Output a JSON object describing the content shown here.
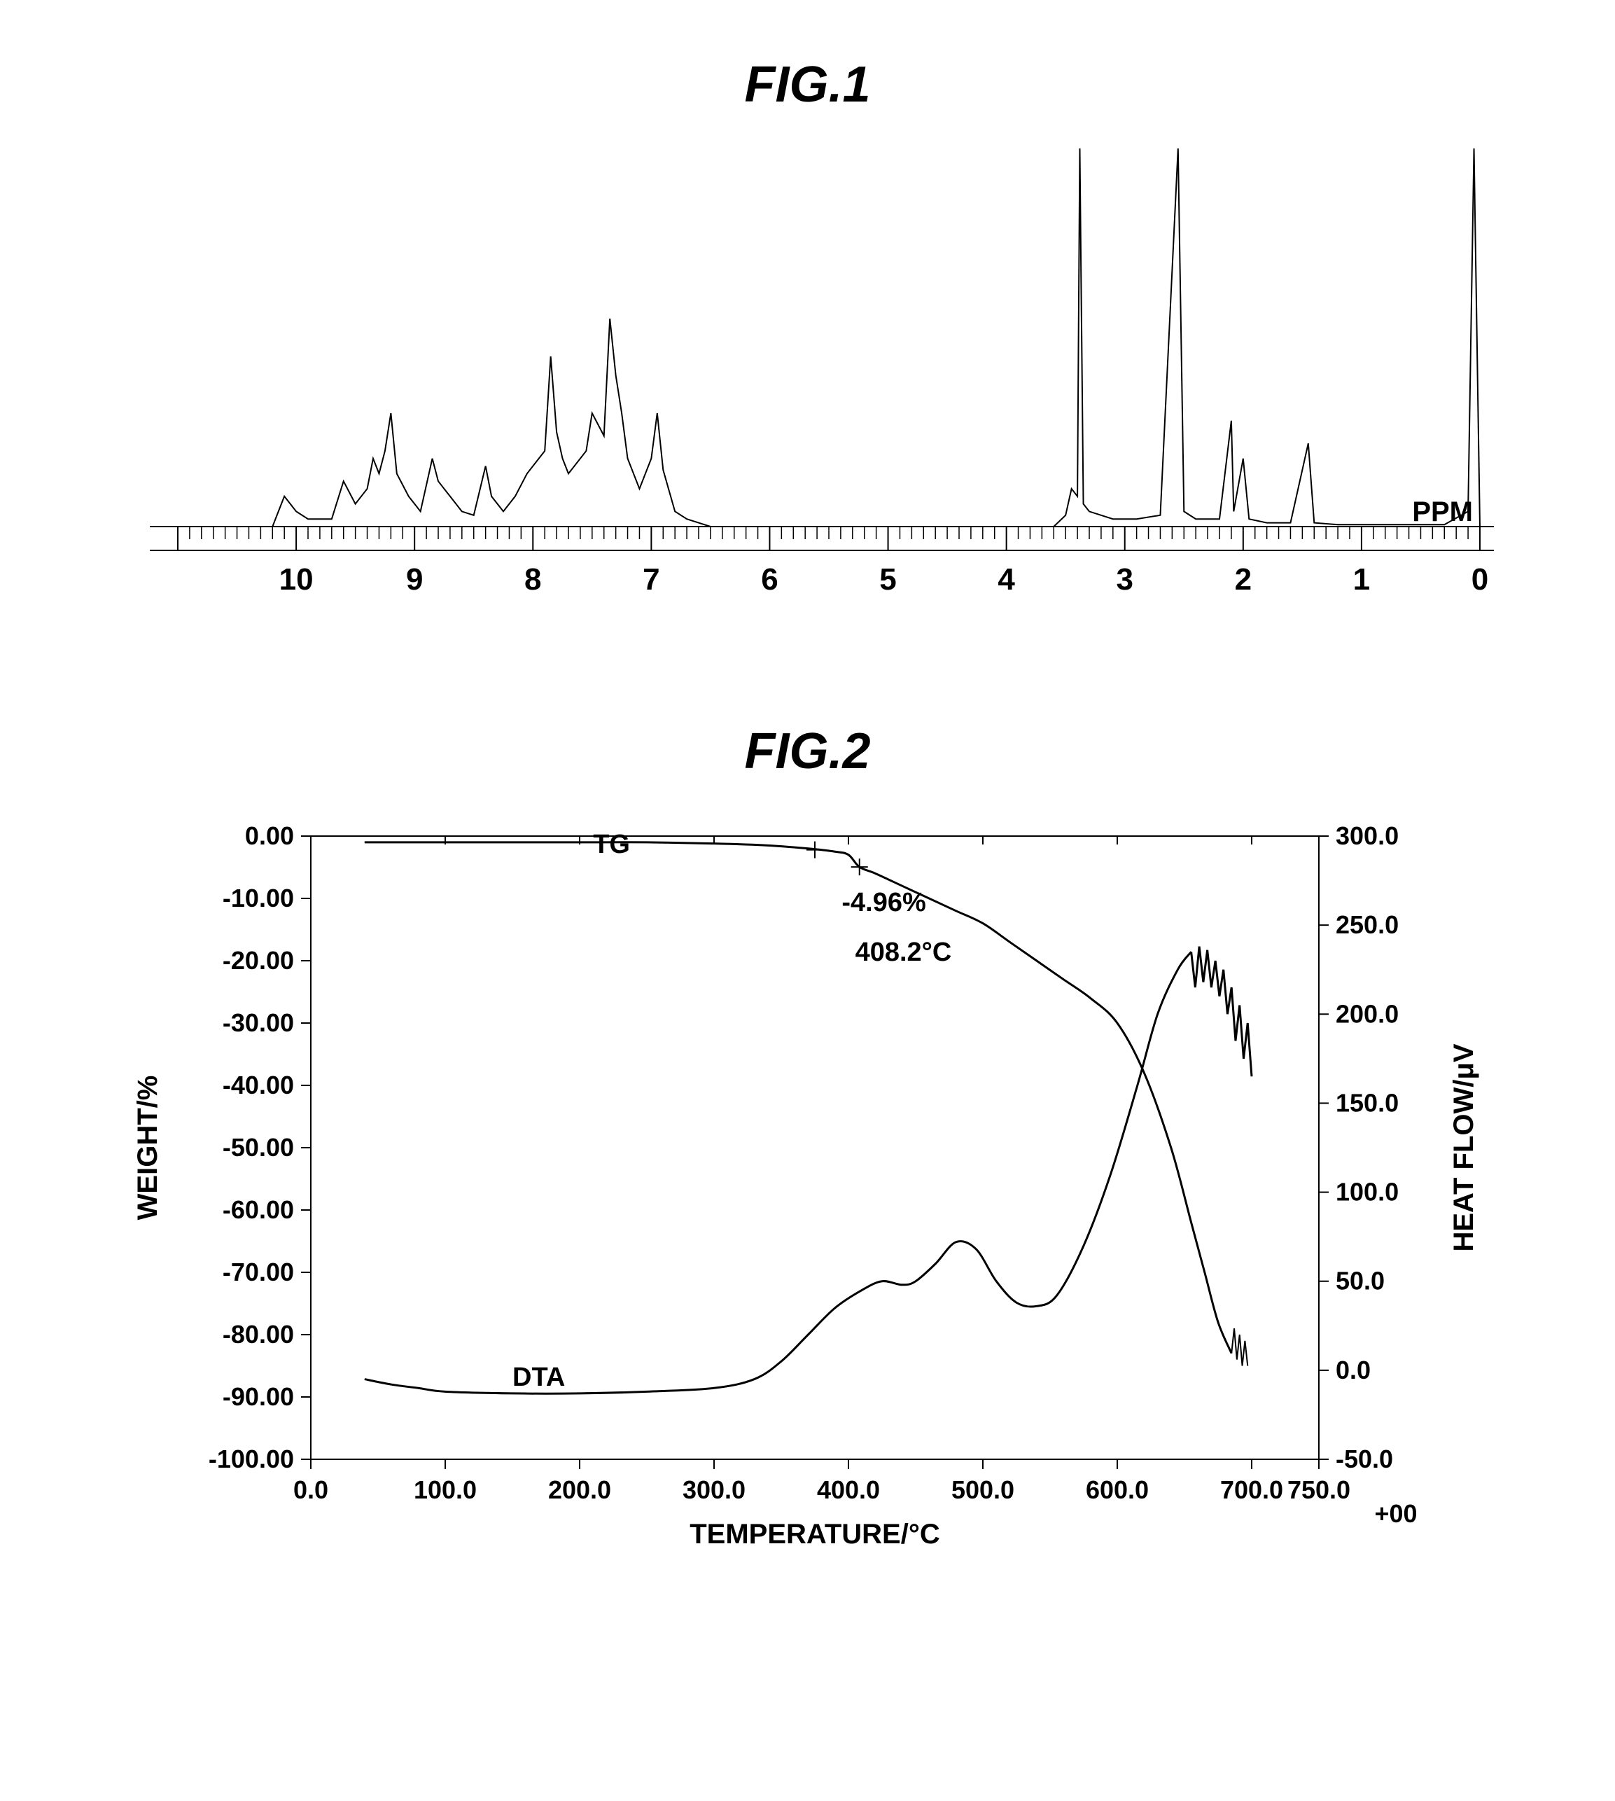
{
  "fig1": {
    "title": "FIG.1",
    "type": "line",
    "xlabel_unit": "PPM",
    "xlim": [
      11,
      0
    ],
    "xticks": [
      10,
      9,
      8,
      7,
      6,
      5,
      4,
      3,
      2,
      1,
      0
    ],
    "tick_labels": [
      "10",
      "9",
      "8",
      "7",
      "6",
      "5",
      "4",
      "3",
      "2",
      "1",
      "0"
    ],
    "line_color": "#000000",
    "background_color": "#ffffff",
    "line_width": 2,
    "title_fontsize": 72,
    "tick_fontsize": 44,
    "minor_ticks_per_major": 10,
    "data": [
      [
        11.0,
        0
      ],
      [
        10.2,
        0
      ],
      [
        10.1,
        8
      ],
      [
        10.0,
        4
      ],
      [
        9.9,
        2
      ],
      [
        9.7,
        2
      ],
      [
        9.6,
        12
      ],
      [
        9.5,
        6
      ],
      [
        9.4,
        10
      ],
      [
        9.35,
        18
      ],
      [
        9.3,
        14
      ],
      [
        9.25,
        20
      ],
      [
        9.2,
        30
      ],
      [
        9.15,
        14
      ],
      [
        9.05,
        8
      ],
      [
        8.95,
        4
      ],
      [
        8.85,
        18
      ],
      [
        8.8,
        12
      ],
      [
        8.7,
        8
      ],
      [
        8.6,
        4
      ],
      [
        8.5,
        3
      ],
      [
        8.4,
        16
      ],
      [
        8.35,
        8
      ],
      [
        8.25,
        4
      ],
      [
        8.15,
        8
      ],
      [
        8.05,
        14
      ],
      [
        7.9,
        20
      ],
      [
        7.85,
        45
      ],
      [
        7.8,
        25
      ],
      [
        7.75,
        18
      ],
      [
        7.7,
        14
      ],
      [
        7.55,
        20
      ],
      [
        7.5,
        30
      ],
      [
        7.4,
        24
      ],
      [
        7.35,
        55
      ],
      [
        7.3,
        40
      ],
      [
        7.25,
        30
      ],
      [
        7.2,
        18
      ],
      [
        7.1,
        10
      ],
      [
        7.0,
        18
      ],
      [
        6.95,
        30
      ],
      [
        6.9,
        15
      ],
      [
        6.8,
        4
      ],
      [
        6.7,
        2
      ],
      [
        6.5,
        0
      ],
      [
        6.0,
        0
      ],
      [
        5.5,
        0
      ],
      [
        5.0,
        0
      ],
      [
        4.5,
        0
      ],
      [
        4.0,
        0
      ],
      [
        3.6,
        0
      ],
      [
        3.5,
        3
      ],
      [
        3.45,
        10
      ],
      [
        3.4,
        8
      ],
      [
        3.38,
        100
      ],
      [
        3.35,
        6
      ],
      [
        3.3,
        4
      ],
      [
        3.2,
        3
      ],
      [
        3.1,
        2
      ],
      [
        2.9,
        2
      ],
      [
        2.7,
        3
      ],
      [
        2.55,
        100
      ],
      [
        2.5,
        4
      ],
      [
        2.4,
        2
      ],
      [
        2.2,
        2
      ],
      [
        2.1,
        28
      ],
      [
        2.08,
        4
      ],
      [
        2.0,
        18
      ],
      [
        1.95,
        2
      ],
      [
        1.8,
        1
      ],
      [
        1.6,
        1
      ],
      [
        1.45,
        22
      ],
      [
        1.4,
        1
      ],
      [
        1.2,
        0.5
      ],
      [
        1.0,
        0.5
      ],
      [
        0.6,
        0.5
      ],
      [
        0.3,
        0.5
      ],
      [
        0.1,
        4
      ],
      [
        0.05,
        100
      ],
      [
        0.0,
        0
      ]
    ]
  },
  "fig2": {
    "title": "FIG.2",
    "type": "line",
    "xlabel": "TEMPERATURE/°C",
    "ylabel_left": "WEIGHT/%",
    "ylabel_right": "HEAT FLOW/μV",
    "xlim": [
      0,
      750
    ],
    "ylim_left": [
      -100,
      0
    ],
    "ylim_right": [
      -50,
      300
    ],
    "xticks": [
      0.0,
      100.0,
      200.0,
      300.0,
      400.0,
      500.0,
      600.0,
      700.0,
      750.0
    ],
    "xtick_labels": [
      "0.0",
      "100.0",
      "200.0",
      "300.0",
      "400.0",
      "500.0",
      "600.0",
      "700.0",
      "750.0"
    ],
    "yticks_left": [
      "0.00",
      "-10.00",
      "-20.00",
      "-30.00",
      "-40.00",
      "-50.00",
      "-60.00",
      "-70.00",
      "-80.00",
      "-90.00",
      "-100.00"
    ],
    "yticks_right": [
      "300.0",
      "250.0",
      "200.0",
      "150.0",
      "100.0",
      "50.0",
      "0.0",
      "-50.0"
    ],
    "right_axis_suffix": "+00",
    "line_color": "#000000",
    "background_color": "#ffffff",
    "line_width": 2,
    "title_fontsize": 72,
    "axis_fontsize": 40,
    "tick_fontsize": 36,
    "annotations": {
      "tg_label": "TG",
      "dta_label": "DTA",
      "weight_loss": "-4.96%",
      "temperature": "408.2°C"
    },
    "tg_data": [
      [
        40,
        -1
      ],
      [
        100,
        -1
      ],
      [
        150,
        -1
      ],
      [
        200,
        -1
      ],
      [
        250,
        -1
      ],
      [
        300,
        -1.2
      ],
      [
        340,
        -1.5
      ],
      [
        370,
        -2
      ],
      [
        390,
        -2.5
      ],
      [
        400,
        -3
      ],
      [
        408.2,
        -4.96
      ],
      [
        420,
        -6
      ],
      [
        440,
        -8
      ],
      [
        460,
        -10
      ],
      [
        480,
        -12
      ],
      [
        500,
        -14
      ],
      [
        520,
        -17
      ],
      [
        540,
        -20
      ],
      [
        560,
        -23
      ],
      [
        580,
        -26
      ],
      [
        600,
        -30
      ],
      [
        620,
        -38
      ],
      [
        640,
        -50
      ],
      [
        655,
        -62
      ],
      [
        665,
        -70
      ],
      [
        675,
        -78
      ],
      [
        685,
        -83
      ]
    ],
    "tg_marks": [
      [
        375,
        -2.2
      ],
      [
        408.2,
        -4.96
      ]
    ],
    "dta_data": [
      [
        40,
        -5
      ],
      [
        60,
        -8
      ],
      [
        80,
        -10
      ],
      [
        100,
        -12
      ],
      [
        150,
        -13
      ],
      [
        200,
        -13
      ],
      [
        250,
        -12
      ],
      [
        300,
        -10
      ],
      [
        330,
        -5
      ],
      [
        350,
        5
      ],
      [
        370,
        20
      ],
      [
        390,
        35
      ],
      [
        410,
        45
      ],
      [
        425,
        50
      ],
      [
        440,
        48
      ],
      [
        450,
        50
      ],
      [
        465,
        60
      ],
      [
        480,
        72
      ],
      [
        495,
        68
      ],
      [
        510,
        50
      ],
      [
        525,
        38
      ],
      [
        540,
        36
      ],
      [
        555,
        42
      ],
      [
        575,
        70
      ],
      [
        595,
        110
      ],
      [
        615,
        160
      ],
      [
        630,
        200
      ],
      [
        645,
        225
      ],
      [
        655,
        235
      ]
    ],
    "dta_noise_cap": [
      [
        655,
        235
      ],
      [
        658,
        215
      ],
      [
        661,
        238
      ],
      [
        664,
        218
      ],
      [
        667,
        236
      ],
      [
        670,
        215
      ],
      [
        673,
        230
      ],
      [
        676,
        210
      ],
      [
        679,
        225
      ],
      [
        682,
        200
      ],
      [
        685,
        215
      ],
      [
        688,
        185
      ],
      [
        691,
        205
      ],
      [
        694,
        175
      ],
      [
        697,
        195
      ],
      [
        700,
        165
      ]
    ],
    "tg_end_noise": [
      [
        685,
        -83
      ],
      [
        687,
        -79
      ],
      [
        689,
        -84
      ],
      [
        691,
        -80
      ],
      [
        693,
        -85
      ],
      [
        695,
        -81
      ],
      [
        697,
        -85
      ]
    ]
  }
}
